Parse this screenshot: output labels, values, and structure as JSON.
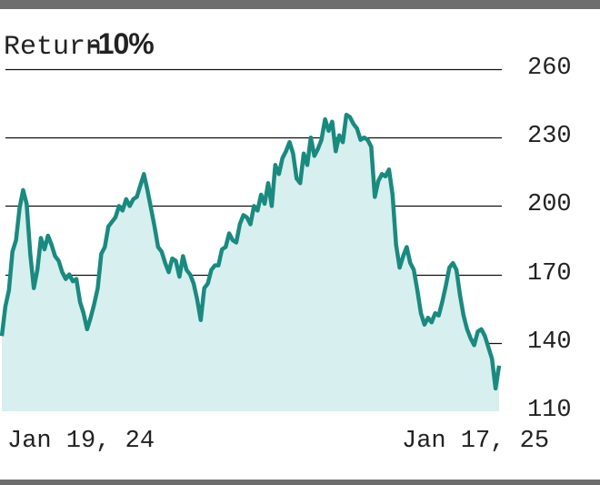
{
  "chart_data": {
    "type": "area",
    "title_prefix": "Return",
    "title_value": "-10%",
    "ylim": [
      110,
      260
    ],
    "yticks": [
      260,
      230,
      200,
      170,
      140,
      110
    ],
    "x_labels": [
      "Jan 19, 24",
      "Jan 17, 25"
    ],
    "grid": "horizontal",
    "colors": {
      "line": "#1a8a80",
      "fill": "#d7efee",
      "grid": "#111111"
    },
    "series": [
      {
        "values": [
          143,
          156,
          163,
          180,
          185,
          199,
          207,
          201,
          179,
          164,
          172,
          186,
          181,
          187,
          183,
          178,
          176,
          171,
          168,
          170,
          167,
          168,
          158,
          153,
          146,
          151,
          157,
          164,
          179,
          182,
          191,
          193,
          195,
          200,
          198,
          203,
          200,
          203,
          204,
          209,
          214,
          207,
          199,
          191,
          182,
          180,
          175,
          171,
          177,
          176,
          169,
          178,
          172,
          170,
          166,
          159,
          150,
          164,
          166,
          172,
          174,
          174,
          181,
          182,
          188,
          185,
          184,
          192,
          196,
          195,
          192,
          200,
          198,
          205,
          201,
          210,
          200,
          218,
          214,
          221,
          224,
          228,
          223,
          212,
          210,
          223,
          218,
          230,
          222,
          225,
          229,
          238,
          233,
          237,
          224,
          231,
          228,
          240,
          239,
          236,
          234,
          229,
          230,
          229,
          226,
          204,
          211,
          214,
          213,
          216,
          205,
          183,
          173,
          178,
          182,
          175,
          172,
          163,
          153,
          148,
          151,
          149,
          153,
          152,
          158,
          165,
          173,
          175,
          172,
          161,
          152,
          146,
          142,
          139,
          145,
          146,
          143,
          138,
          133,
          120,
          130
        ]
      }
    ]
  }
}
